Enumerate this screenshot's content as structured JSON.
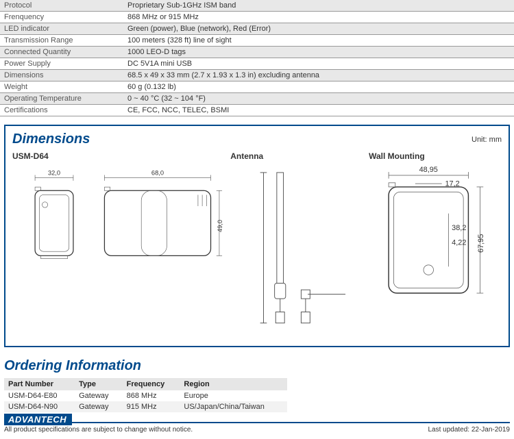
{
  "specs": [
    {
      "label": "Protocol",
      "value": "Proprietary Sub-1GHz ISM band",
      "alt": true
    },
    {
      "label": "Frenquency",
      "value": "868 MHz or 915 MHz",
      "alt": false
    },
    {
      "label": "LED indicator",
      "value": "Green (power), Blue (network), Red (Error)",
      "alt": true
    },
    {
      "label": "Transmission Range",
      "value": "100 meters (328 ft) line of sight",
      "alt": false
    },
    {
      "label": "Connected Quantity",
      "value": "1000 LEO-D tags",
      "alt": true
    },
    {
      "label": "Power Supply",
      "value": "DC 5V1A mini USB",
      "alt": false
    },
    {
      "label": "Dimensions",
      "value": "68.5 x 49 x 33 mm (2.7 x 1.93 x 1.3 in) excluding antenna",
      "alt": true
    },
    {
      "label": "Weight",
      "value": "60 g (0.132 lb)",
      "alt": false
    },
    {
      "label": "Operating Temperature",
      "value": "0 ~ 40 °C (32 ~ 104 °F)",
      "alt": true
    },
    {
      "label": "Certifications",
      "value": "CE, FCC, NCC, TELEC, BSMI",
      "alt": false
    }
  ],
  "dimensions": {
    "section_title": "Dimensions",
    "unit": "Unit: mm",
    "usm_label": "USM-D64",
    "antenna_label": "Antenna",
    "wall_label": "Wall Mounting",
    "m_32": "32,0",
    "m_68": "68,0",
    "m_49": "49,0",
    "m_4895": "48,95",
    "m_172": "17,2",
    "m_382": "38,2",
    "m_422": "4,22",
    "m_6795": "67,95"
  },
  "ordering": {
    "title": "Ordering Information",
    "headers": {
      "pn": "Part Number",
      "type": "Type",
      "freq": "Frequency",
      "region": "Region"
    },
    "rows": [
      {
        "pn": "USM-D64-E80",
        "type": "Gateway",
        "freq": "868 MHz",
        "region": "Europe",
        "alt": false
      },
      {
        "pn": "USM-D64-N90",
        "type": "Gateway",
        "freq": "915 MHz",
        "region": "US/Japan/China/Taiwan",
        "alt": true
      }
    ]
  },
  "footer": {
    "logo": "ADVANTECH",
    "note": "All product specifications are subject to change without notice.",
    "updated": "Last updated: 22-Jan-2019"
  },
  "colors": {
    "brand": "#004a8c",
    "row_alt": "#e8e8e8",
    "header_bg": "#e6e6e6"
  }
}
